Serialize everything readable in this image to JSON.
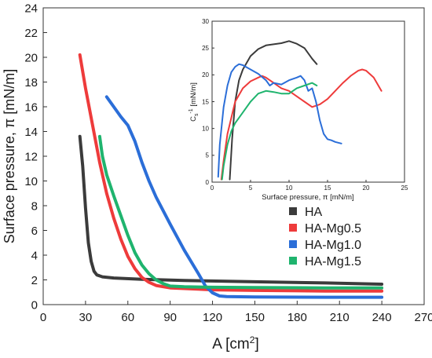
{
  "chart_data": [
    {
      "type": "line",
      "xlabel": "A [cm",
      "xlabel_sup": "2",
      "xlabel_end": "]",
      "ylabel": "Surface pressure, π [mN/m]",
      "xlim": [
        0,
        270
      ],
      "ylim": [
        0,
        24
      ],
      "xticks": [
        0,
        30,
        60,
        90,
        120,
        150,
        180,
        210,
        240,
        270
      ],
      "yticks": [
        0,
        2,
        4,
        6,
        8,
        10,
        12,
        14,
        16,
        18,
        20,
        22,
        24
      ],
      "legend_position": "center-right",
      "series": [
        {
          "name": "HA",
          "color": "#3b3b3b",
          "x": [
            26,
            28,
            30,
            32,
            34,
            36,
            38,
            42,
            50,
            70,
            100,
            150,
            200,
            240
          ],
          "y": [
            13.6,
            11.2,
            7.8,
            5.0,
            3.5,
            2.7,
            2.4,
            2.25,
            2.15,
            2.05,
            1.95,
            1.85,
            1.75,
            1.65
          ]
        },
        {
          "name": "HA-Mg0.5",
          "color": "#ee3b3b",
          "x": [
            26,
            30,
            35,
            40,
            45,
            50,
            55,
            60,
            65,
            70,
            75,
            80,
            90,
            100,
            120,
            150,
            200,
            240
          ],
          "y": [
            20.2,
            17.5,
            14.5,
            11.5,
            9.0,
            7.0,
            5.3,
            3.9,
            2.9,
            2.2,
            1.8,
            1.55,
            1.35,
            1.3,
            1.2,
            1.15,
            1.1,
            1.1
          ]
        },
        {
          "name": "HA-Mg1.0",
          "color": "#2b6ed8",
          "x": [
            45,
            50,
            55,
            60,
            65,
            70,
            75,
            80,
            90,
            100,
            110,
            115,
            120,
            125,
            130,
            150,
            200,
            240
          ],
          "y": [
            16.8,
            16.0,
            15.2,
            14.5,
            13.2,
            11.5,
            10.0,
            8.7,
            6.5,
            4.4,
            2.5,
            1.5,
            0.95,
            0.7,
            0.65,
            0.62,
            0.6,
            0.6
          ]
        },
        {
          "name": "HA-Mg1.5",
          "color": "#1fb46e",
          "x": [
            40,
            42,
            45,
            50,
            55,
            60,
            65,
            70,
            75,
            80,
            85,
            90,
            100,
            120,
            150,
            200,
            240
          ],
          "y": [
            13.6,
            12.0,
            10.5,
            8.8,
            7.2,
            5.6,
            4.2,
            3.2,
            2.5,
            2.0,
            1.7,
            1.5,
            1.45,
            1.4,
            1.38,
            1.35,
            1.35
          ]
        }
      ]
    },
    {
      "type": "line",
      "xlabel": "Surface pressure, π [mN/m]",
      "ylabel": "C",
      "ylabel_sub": "s",
      "ylabel_sup": "-1",
      "ylabel_end": " [mN/m]",
      "xlim": [
        0,
        25
      ],
      "ylim": [
        0,
        30
      ],
      "xticks": [
        0,
        5,
        10,
        15,
        20,
        25
      ],
      "yticks": [
        0,
        5,
        10,
        15,
        20,
        25,
        30
      ],
      "series": [
        {
          "color": "#3b3b3b",
          "x": [
            2.3,
            2.6,
            3.0,
            3.5,
            4.0,
            5.0,
            6.0,
            7.0,
            8.0,
            9.0,
            10.0,
            11.0,
            12.0,
            13.0,
            13.6
          ],
          "y": [
            0.5,
            8.0,
            15.0,
            19.0,
            21.0,
            23.5,
            24.8,
            25.5,
            25.7,
            25.9,
            26.3,
            25.8,
            25.0,
            23.0,
            22.0
          ]
        },
        {
          "color": "#ee3b3b",
          "x": [
            1.2,
            1.5,
            2.0,
            3.0,
            4.0,
            5.0,
            6.0,
            6.5,
            7.0,
            7.5,
            8.0,
            9.0,
            10.0,
            11.0,
            12.0,
            13.0,
            14.0,
            15.0,
            16.0,
            17.0,
            18.0,
            19.0,
            19.5,
            20.0,
            21.0,
            22.0
          ],
          "y": [
            0.5,
            4.0,
            9.0,
            15.0,
            17.5,
            18.8,
            19.5,
            19.8,
            19.5,
            19.0,
            18.5,
            17.5,
            17.0,
            16.0,
            15.0,
            14.0,
            14.5,
            15.5,
            17.0,
            18.5,
            19.8,
            20.8,
            21.0,
            20.8,
            19.5,
            17.0
          ]
        },
        {
          "color": "#2b6ed8",
          "x": [
            0.8,
            1.0,
            1.5,
            2.0,
            2.5,
            3.0,
            3.5,
            4.0,
            5.0,
            6.0,
            7.0,
            7.5,
            8.0,
            9.0,
            10.0,
            11.0,
            11.5,
            12.0,
            12.5,
            13.0,
            13.5,
            14.0,
            14.5,
            15.0,
            15.5,
            16.0,
            16.8
          ],
          "y": [
            1.0,
            7.0,
            14.0,
            18.0,
            20.5,
            21.5,
            22.0,
            21.8,
            21.0,
            20.2,
            19.0,
            18.0,
            18.5,
            18.2,
            19.0,
            19.5,
            19.8,
            19.0,
            17.0,
            17.5,
            15.0,
            11.5,
            9.0,
            8.0,
            7.8,
            7.5,
            7.2
          ]
        },
        {
          "color": "#1fb46e",
          "x": [
            1.3,
            1.5,
            2.0,
            2.5,
            3.0,
            4.0,
            5.0,
            6.0,
            7.0,
            8.0,
            9.0,
            10.0,
            11.0,
            12.0,
            13.0,
            13.6
          ],
          "y": [
            0.5,
            3.0,
            7.0,
            9.5,
            11.0,
            13.0,
            15.0,
            16.5,
            17.0,
            16.8,
            16.5,
            16.5,
            17.5,
            18.0,
            18.5,
            18.0
          ]
        }
      ]
    }
  ]
}
